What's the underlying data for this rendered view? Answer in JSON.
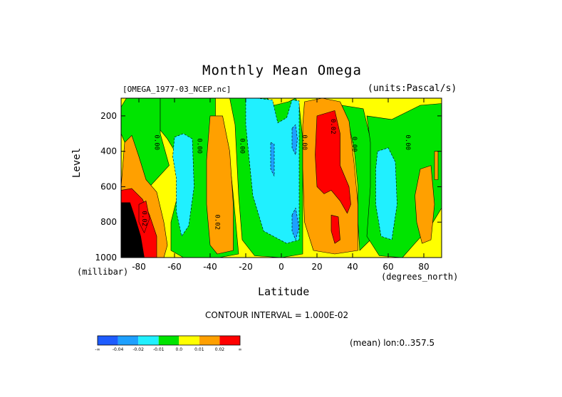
{
  "chart_data": {
    "type": "heatmap",
    "title": "Monthly Mean Omega",
    "subtitle_left": "[OMEGA_1977-03_NCEP.nc]",
    "subtitle_right": "(units:Pascal/s)",
    "xlabel": "Latitude",
    "ylabel": "Level",
    "x_unit": "(degrees_north)",
    "y_unit": "(millibar)",
    "xlim": [
      -90,
      90
    ],
    "ylim": [
      1000,
      100
    ],
    "x_ticks": [
      -80,
      -60,
      -40,
      -20,
      0,
      20,
      40,
      60,
      80
    ],
    "y_ticks": [
      200,
      400,
      600,
      800,
      1000
    ],
    "contour_interval_text": "CONTOUR INTERVAL = 1.000E-02",
    "mean_text": "(mean) lon:0..357.5",
    "colorbar": {
      "labels": [
        "-∞",
        "-0.04",
        "-0.02",
        "-0.01",
        "0.0",
        "0.01",
        "0.02",
        "∞"
      ],
      "colors": [
        "#1e5cff",
        "#1ea0ff",
        "#20f0ff",
        "#00e400",
        "#ffff00",
        "#ffa000",
        "#ff0000"
      ]
    },
    "contour_labels": [
      {
        "text": "0.00",
        "x": -71,
        "y": 350
      },
      {
        "text": "0.00",
        "x": -47,
        "y": 370
      },
      {
        "text": "0.00",
        "x": -23,
        "y": 370
      },
      {
        "text": "0.00",
        "x": 12,
        "y": 350
      },
      {
        "text": "0.02",
        "x": 28,
        "y": 260
      },
      {
        "text": "0.00",
        "x": 40,
        "y": 360
      },
      {
        "text": "0.00",
        "x": 70,
        "y": 350
      },
      {
        "text": "0.02",
        "x": -37,
        "y": 800
      },
      {
        "text": "0.02",
        "x": -78,
        "y": 780
      }
    ],
    "regions": [
      {
        "class": 4,
        "points": [
          [
            -90,
            100
          ],
          [
            90,
            100
          ],
          [
            90,
            1000
          ],
          [
            -90,
            1000
          ]
        ]
      },
      {
        "class": 3,
        "points": [
          [
            -87,
            100
          ],
          [
            -68,
            100
          ],
          [
            -68,
            300
          ],
          [
            -63,
            480
          ],
          [
            -74,
            600
          ],
          [
            -79,
            550
          ],
          [
            -85,
            420
          ],
          [
            -90,
            300
          ],
          [
            -90,
            150
          ]
        ]
      },
      {
        "class": 3,
        "points": [
          [
            -68,
            100
          ],
          [
            -37,
            100
          ],
          [
            -37,
            200
          ],
          [
            -30,
            350
          ],
          [
            -27,
            650
          ],
          [
            -24,
            980
          ],
          [
            -35,
            1000
          ],
          [
            -55,
            1000
          ],
          [
            -62,
            960
          ],
          [
            -62,
            800
          ],
          [
            -57,
            600
          ],
          [
            -58,
            430
          ],
          [
            -64,
            330
          ],
          [
            -68,
            280
          ]
        ]
      },
      {
        "class": 3,
        "points": [
          [
            -29,
            100
          ],
          [
            -8,
            100
          ],
          [
            -4,
            140
          ],
          [
            4,
            120
          ],
          [
            8,
            100
          ],
          [
            10,
            140
          ],
          [
            12,
            330
          ],
          [
            12,
            650
          ],
          [
            12,
            980
          ],
          [
            0,
            1000
          ],
          [
            -15,
            990
          ],
          [
            -22,
            900
          ],
          [
            -24,
            650
          ],
          [
            -25,
            450
          ],
          [
            -26,
            250
          ]
        ]
      },
      {
        "class": 3,
        "points": [
          [
            34,
            140
          ],
          [
            46,
            160
          ],
          [
            50,
            330
          ],
          [
            52,
            600
          ],
          [
            52,
            880
          ],
          [
            44,
            960
          ],
          [
            43,
            800
          ],
          [
            43,
            600
          ],
          [
            41,
            400
          ],
          [
            38,
            250
          ]
        ]
      },
      {
        "class": 3,
        "points": [
          [
            48,
            200
          ],
          [
            62,
            220
          ],
          [
            78,
            140
          ],
          [
            90,
            130
          ],
          [
            90,
            720
          ],
          [
            84,
            820
          ],
          [
            75,
            920
          ],
          [
            68,
            1000
          ],
          [
            55,
            990
          ],
          [
            48,
            880
          ],
          [
            50,
            600
          ],
          [
            50,
            350
          ]
        ]
      },
      {
        "class": 2,
        "points": [
          [
            -20,
            100
          ],
          [
            -14,
            100
          ],
          [
            -5,
            110
          ],
          [
            -2,
            240
          ],
          [
            3,
            210
          ],
          [
            6,
            110
          ],
          [
            10,
            115
          ],
          [
            10,
            330
          ],
          [
            10,
            650
          ],
          [
            10,
            900
          ],
          [
            3,
            920
          ],
          [
            -10,
            850
          ],
          [
            -16,
            650
          ],
          [
            -18,
            450
          ],
          [
            -20,
            250
          ]
        ]
      },
      {
        "class": 2,
        "points": [
          [
            -60,
            320
          ],
          [
            -55,
            300
          ],
          [
            -50,
            330
          ],
          [
            -49,
            600
          ],
          [
            -52,
            820
          ],
          [
            -56,
            880
          ],
          [
            -59,
            740
          ],
          [
            -59,
            550
          ],
          [
            -61,
            430
          ]
        ]
      },
      {
        "class": 2,
        "points": [
          [
            54,
            400
          ],
          [
            60,
            380
          ],
          [
            64,
            460
          ],
          [
            65,
            700
          ],
          [
            62,
            900
          ],
          [
            56,
            880
          ],
          [
            53,
            700
          ],
          [
            53,
            500
          ]
        ]
      },
      {
        "class": 5,
        "points": [
          [
            -88,
            350
          ],
          [
            -84,
            310
          ],
          [
            -80,
            430
          ],
          [
            -76,
            560
          ],
          [
            -70,
            630
          ],
          [
            -66,
            800
          ],
          [
            -64,
            930
          ],
          [
            -66,
            1000
          ],
          [
            -90,
            1000
          ],
          [
            -90,
            600
          ]
        ]
      },
      {
        "class": 5,
        "points": [
          [
            -40,
            200
          ],
          [
            -33,
            200
          ],
          [
            -29,
            400
          ],
          [
            -27,
            700
          ],
          [
            -27,
            960
          ],
          [
            -36,
            980
          ],
          [
            -40,
            930
          ],
          [
            -42,
            700
          ],
          [
            -42,
            450
          ]
        ]
      },
      {
        "class": 5,
        "points": [
          [
            13,
            120
          ],
          [
            23,
            100
          ],
          [
            33,
            120
          ],
          [
            38,
            230
          ],
          [
            41,
            480
          ],
          [
            43,
            700
          ],
          [
            43,
            960
          ],
          [
            30,
            980
          ],
          [
            18,
            960
          ],
          [
            13,
            800
          ],
          [
            12,
            500
          ],
          [
            12,
            250
          ]
        ]
      },
      {
        "class": 5,
        "points": [
          [
            78,
            500
          ],
          [
            84,
            480
          ],
          [
            86,
            700
          ],
          [
            84,
            900
          ],
          [
            79,
            920
          ],
          [
            76,
            800
          ],
          [
            75,
            650
          ]
        ]
      },
      {
        "class": 5,
        "points": [
          [
            86,
            400
          ],
          [
            88,
            400
          ],
          [
            88,
            560
          ],
          [
            86,
            560
          ]
        ]
      },
      {
        "class": 6,
        "points": [
          [
            -90,
            620
          ],
          [
            -84,
            610
          ],
          [
            -78,
            670
          ],
          [
            -74,
            760
          ],
          [
            -70,
            880
          ],
          [
            -70,
            1000
          ],
          [
            -90,
            1000
          ]
        ]
      },
      {
        "class": 6,
        "points": [
          [
            -80,
            700
          ],
          [
            -76,
            680
          ],
          [
            -74,
            780
          ],
          [
            -77,
            860
          ],
          [
            -80,
            800
          ]
        ]
      },
      {
        "class": 6,
        "points": [
          [
            20,
            200
          ],
          [
            30,
            170
          ],
          [
            33,
            300
          ],
          [
            33,
            480
          ],
          [
            38,
            600
          ],
          [
            39,
            700
          ],
          [
            37,
            750
          ],
          [
            33,
            680
          ],
          [
            28,
            620
          ],
          [
            24,
            640
          ],
          [
            20,
            600
          ],
          [
            19,
            420
          ]
        ]
      },
      {
        "class": 6,
        "points": [
          [
            28,
            760
          ],
          [
            32,
            770
          ],
          [
            33,
            900
          ],
          [
            30,
            920
          ],
          [
            28,
            850
          ]
        ]
      },
      {
        "class": 7,
        "points": [
          [
            -90,
            690
          ],
          [
            -85,
            690
          ],
          [
            -82,
            780
          ],
          [
            -79,
            880
          ],
          [
            -77,
            1000
          ],
          [
            -90,
            1000
          ]
        ]
      },
      {
        "class": 1,
        "points": [
          [
            -6,
            350
          ],
          [
            -4,
            360
          ],
          [
            -4,
            540
          ],
          [
            -6,
            500
          ]
        ]
      },
      {
        "class": 1,
        "points": [
          [
            6,
            270
          ],
          [
            8,
            250
          ],
          [
            9,
            330
          ],
          [
            8,
            420
          ],
          [
            6,
            380
          ]
        ]
      },
      {
        "class": 1,
        "points": [
          [
            6,
            760
          ],
          [
            8,
            720
          ],
          [
            10,
            830
          ],
          [
            8,
            900
          ],
          [
            6,
            850
          ]
        ]
      }
    ]
  }
}
